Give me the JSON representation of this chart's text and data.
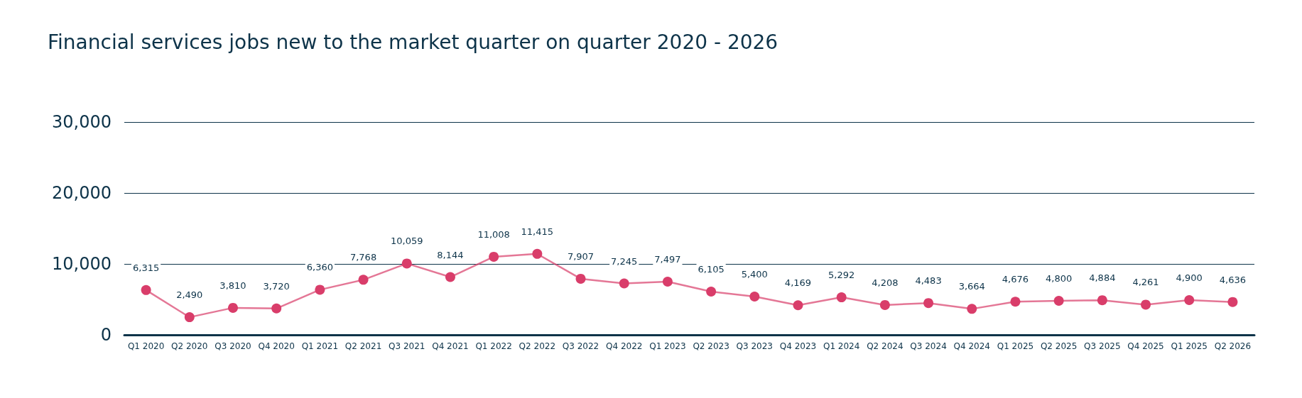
{
  "chart_data": {
    "type": "line",
    "title": "Financial services jobs new to the market quarter on quarter 2020 - 2026",
    "categories": [
      "Q1 2020",
      "Q2 2020",
      "Q3 2020",
      "Q4 2020",
      "Q1 2021",
      "Q2 2021",
      "Q3 2021",
      "Q4 2021",
      "Q1 2022",
      "Q2 2022",
      "Q3 2022",
      "Q4 2022",
      "Q1 2023",
      "Q2 2023",
      "Q3 2023",
      "Q4 2023",
      "Q1 2024",
      "Q2 2024",
      "Q3 2024",
      "Q4 2024",
      "Q1 2025",
      "Q2 2025",
      "Q3 2025",
      "Q4 2025",
      "Q1 2025",
      "Q2 2026"
    ],
    "series": [
      {
        "color": "#d93d6a",
        "values": [
          6315,
          2490,
          3810,
          3720,
          6360,
          7768,
          10059,
          8144,
          11008,
          11415,
          7907,
          7245,
          7497,
          6105,
          5400,
          4169,
          5292,
          4208,
          4483,
          3664,
          4676,
          4800,
          4884,
          4261,
          4900,
          4636
        ],
        "value_labels": [
          "6,315",
          "2,490",
          "3,810",
          "3,720",
          "6,360",
          "7,768",
          "10,059",
          "8,144",
          "11,008",
          "11,415",
          "7,907",
          "7,245",
          "7,497",
          "6,105",
          "5,400",
          "4,169",
          "5,292",
          "4,208",
          "4,483",
          "3,664",
          "4,676",
          "4,800",
          "4,884",
          "4,261",
          "4,900",
          "4,636"
        ]
      }
    ],
    "ylim": [
      0,
      30000
    ],
    "yticks": [
      0,
      {
        "value": 10000,
        "label": "10,000"
      },
      {
        "value": 20000,
        "label": "20,000"
      },
      {
        "value": 30000,
        "label": "30,000"
      }
    ],
    "grid": "y",
    "marker": "circle",
    "line_style": "solid"
  }
}
